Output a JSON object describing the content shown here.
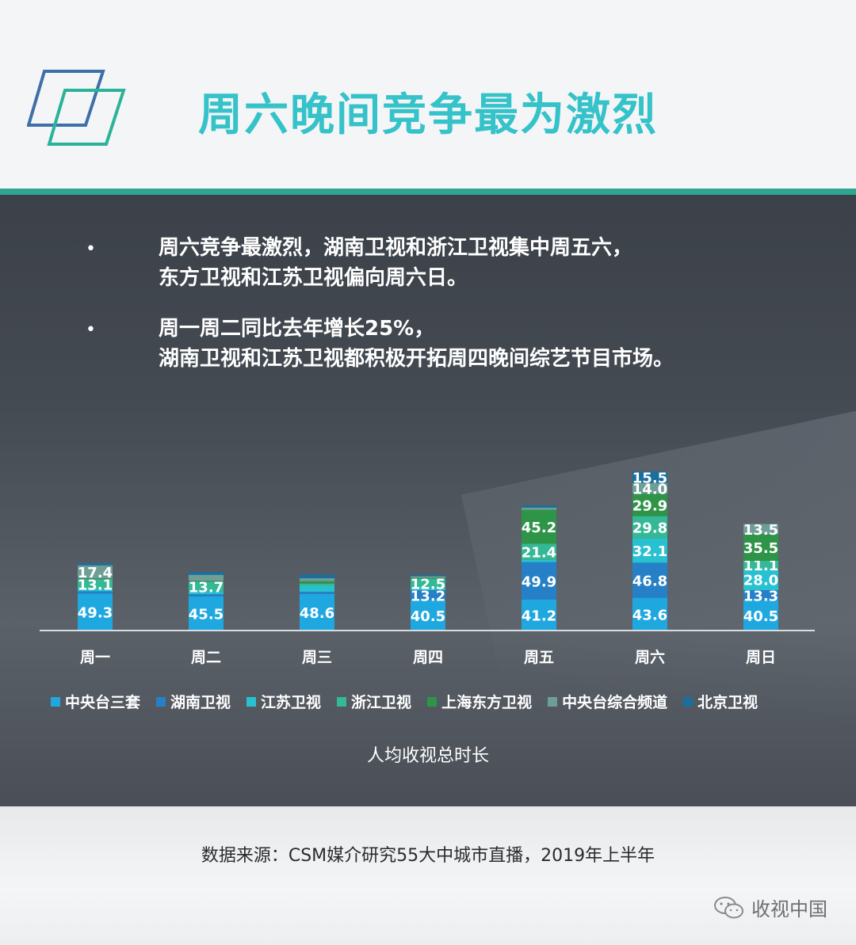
{
  "header": {
    "title": "周六晚间竞争最为激烈"
  },
  "bullets": [
    {
      "line1": "周六竞争最激烈，湖南卫视和浙江卫视集中周五六，",
      "line2": "东方卫视和江苏卫视偏向周六日。"
    },
    {
      "line1": "周一周二同比去年增长25%，",
      "line2": "湖南卫视和江苏卫视都积极开拓周四晚间综艺节目市场。"
    }
  ],
  "bullet_symbol": "•",
  "colors": {
    "header_bg": "#f4f5f7",
    "accent_rule": "#2ea58e",
    "title": "#35c2c9",
    "logo_blue": "#3e6fa8",
    "logo_green": "#2bb39a"
  },
  "chart_data": {
    "type": "bar",
    "stacked": true,
    "caption": "人均收视总时长",
    "categories": [
      "周一",
      "周二",
      "周三",
      "周四",
      "周五",
      "周六",
      "周日"
    ],
    "series": [
      {
        "name": "中央台三套",
        "color": "#1fa8e0",
        "values": [
          49.3,
          45.5,
          48.6,
          40.5,
          41.2,
          43.6,
          40.5
        ]
      },
      {
        "name": "湖南卫视",
        "color": "#2680c7",
        "values": [
          3,
          3,
          3,
          13.2,
          49.9,
          46.8,
          13.3
        ]
      },
      {
        "name": "江苏卫视",
        "color": "#27c1d1",
        "values": [
          3,
          3,
          8,
          3,
          3,
          32.1,
          28.0
        ]
      },
      {
        "name": "浙江卫视",
        "color": "#35b896",
        "values": [
          13.1,
          13.7,
          3,
          12.5,
          21.4,
          29.8,
          11.1
        ]
      },
      {
        "name": "上海东方卫视",
        "color": "#2e9448",
        "values": [
          1,
          1,
          3,
          1,
          45.2,
          29.9,
          35.5
        ]
      },
      {
        "name": "中央台综合频道",
        "color": "#6f9e96",
        "values": [
          17.4,
          8,
          4,
          2,
          3,
          14.0,
          13.5
        ]
      },
      {
        "name": "北京卫视",
        "color": "#1a6f9e",
        "values": [
          3,
          4,
          5,
          2,
          3,
          15.5,
          0
        ]
      }
    ],
    "data_labels": [
      {
        "category": "周一",
        "series": "中央台三套",
        "text": "49.3"
      },
      {
        "category": "周一",
        "series": "浙江卫视",
        "text": "13.1"
      },
      {
        "category": "周一",
        "series": "中央台综合频道",
        "text": "17.4"
      },
      {
        "category": "周二",
        "series": "中央台三套",
        "text": "45.5"
      },
      {
        "category": "周二",
        "series": "浙江卫视",
        "text": "13.7"
      },
      {
        "category": "周三",
        "series": "中央台三套",
        "text": "48.6"
      },
      {
        "category": "周四",
        "series": "中央台三套",
        "text": "40.5"
      },
      {
        "category": "周四",
        "series": "湖南卫视",
        "text": "13.2"
      },
      {
        "category": "周四",
        "series": "浙江卫视",
        "text": "12.5"
      },
      {
        "category": "周五",
        "series": "中央台三套",
        "text": "41.2"
      },
      {
        "category": "周五",
        "series": "湖南卫视",
        "text": "49.9"
      },
      {
        "category": "周五",
        "series": "浙江卫视",
        "text": "21.4"
      },
      {
        "category": "周五",
        "series": "上海东方卫视",
        "text": "45.2"
      },
      {
        "category": "周六",
        "series": "中央台三套",
        "text": "43.6"
      },
      {
        "category": "周六",
        "series": "湖南卫视",
        "text": "46.8"
      },
      {
        "category": "周六",
        "series": "江苏卫视",
        "text": "32.1"
      },
      {
        "category": "周六",
        "series": "浙江卫视",
        "text": "29.8"
      },
      {
        "category": "周六",
        "series": "上海东方卫视",
        "text": "29.9"
      },
      {
        "category": "周六",
        "series": "中央台综合频道",
        "text": "14.0"
      },
      {
        "category": "周六",
        "series": "北京卫视",
        "text": "15.5"
      },
      {
        "category": "周日",
        "series": "中央台三套",
        "text": "40.5"
      },
      {
        "category": "周日",
        "series": "湖南卫视",
        "text": "13.3"
      },
      {
        "category": "周日",
        "series": "江苏卫视",
        "text": "28.0"
      },
      {
        "category": "周日",
        "series": "浙江卫视",
        "text": "11.1"
      },
      {
        "category": "周日",
        "series": "上海东方卫视",
        "text": "35.5"
      },
      {
        "category": "周日",
        "series": "中央台综合频道",
        "text": "13.5"
      }
    ],
    "ylim": [
      0,
      300
    ],
    "legend_position": "bottom",
    "grid": false
  },
  "footer": {
    "source": "数据来源：CSM媒介研究55大中城市直播，2019年上半年",
    "watermark": "收视中国"
  }
}
